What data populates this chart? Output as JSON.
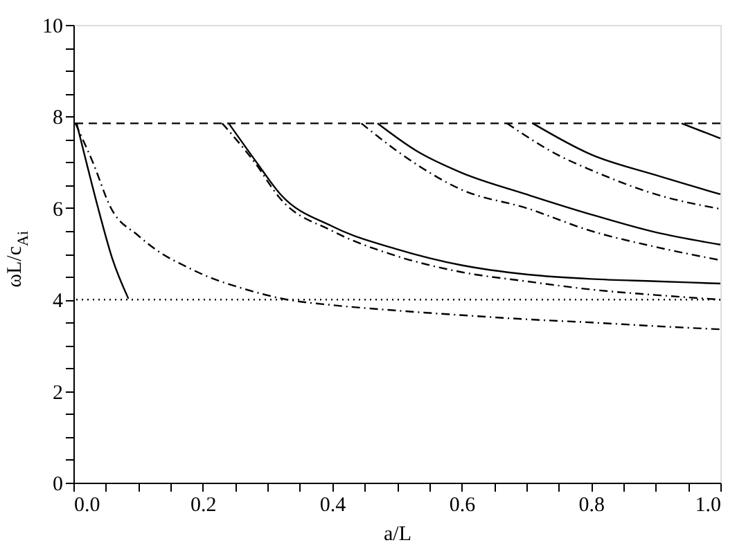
{
  "chart_data": {
    "type": "line",
    "xlabel": "a/L",
    "ylabel": "ωL/c$_{Ai}$",
    "xlim": [
      0,
      1.0
    ],
    "ylim": [
      0,
      10
    ],
    "xticks": [
      {
        "value": 0,
        "label": "0.0"
      },
      {
        "value": 0.05,
        "label": null
      },
      {
        "value": 0.1,
        "label": null
      },
      {
        "value": 0.15,
        "label": null
      },
      {
        "value": 0.2,
        "label": "0.2"
      },
      {
        "value": 0.25,
        "label": null
      },
      {
        "value": 0.3,
        "label": null
      },
      {
        "value": 0.35,
        "label": null
      },
      {
        "value": 0.4,
        "label": "0.4"
      },
      {
        "value": 0.45,
        "label": null
      },
      {
        "value": 0.5,
        "label": null
      },
      {
        "value": 0.55,
        "label": null
      },
      {
        "value": 0.6,
        "label": "0.6"
      },
      {
        "value": 0.65,
        "label": null
      },
      {
        "value": 0.7,
        "label": null
      },
      {
        "value": 0.75,
        "label": null
      },
      {
        "value": 0.8,
        "label": "0.8"
      },
      {
        "value": 0.85,
        "label": null
      },
      {
        "value": 0.9,
        "label": null
      },
      {
        "value": 0.95,
        "label": null
      },
      {
        "value": 1.0,
        "label": "1.0"
      }
    ],
    "yticks": [
      0,
      {
        "value": 0.5,
        "label": null
      },
      {
        "value": 1,
        "label": null
      },
      {
        "value": 1.5,
        "label": null
      },
      2,
      {
        "value": 2.5,
        "label": null
      },
      {
        "value": 3,
        "label": null
      },
      {
        "value": 3.5,
        "label": null
      },
      4,
      {
        "value": 4.5,
        "label": null
      },
      {
        "value": 5,
        "label": null
      },
      {
        "value": 5.5,
        "label": null
      },
      6,
      {
        "value": 6.5,
        "label": null
      },
      {
        "value": 7,
        "label": null
      },
      {
        "value": 7.5,
        "label": null
      },
      8,
      {
        "value": 8.5,
        "label": null
      },
      {
        "value": 9,
        "label": null
      },
      {
        "value": 9.5,
        "label": null
      },
      10
    ],
    "grid": false,
    "marker": "none",
    "ref_lines": [
      {
        "axis": "y",
        "value": 7.85,
        "color": "#000000",
        "line_style": "dashed"
      },
      {
        "axis": "y",
        "value": 4.0,
        "color": "#000000",
        "line_style": "dotted"
      }
    ],
    "series": [
      {
        "color": "#000000",
        "line_style": "solid",
        "x": [
          0.005,
          0.02,
          0.04,
          0.06,
          0.085
        ],
        "values": [
          7.85,
          7.0,
          5.9,
          4.9,
          4.02
        ]
      },
      {
        "color": "#000000",
        "line_style": "dashdot",
        "x": [
          0.003,
          0.03,
          0.058,
          0.1,
          0.137,
          0.17,
          0.208,
          0.26,
          0.33,
          0.4,
          0.5,
          0.6,
          0.7,
          0.8,
          0.9,
          1.0
        ],
        "values": [
          7.85,
          7.0,
          6.0,
          5.4,
          5.0,
          4.75,
          4.5,
          4.25,
          4.0,
          3.88,
          3.76,
          3.66,
          3.57,
          3.5,
          3.42,
          3.35
        ]
      },
      {
        "color": "#000000",
        "line_style": "solid",
        "x": [
          0.24,
          0.283,
          0.32,
          0.4,
          0.5,
          0.6,
          0.7,
          0.8,
          0.9,
          1.0
        ],
        "values": [
          7.85,
          7.0,
          6.3,
          5.6,
          5.1,
          4.75,
          4.55,
          4.45,
          4.4,
          4.35
        ]
      },
      {
        "color": "#000000",
        "line_style": "dashdot",
        "x": [
          0.23,
          0.28,
          0.32,
          0.4,
          0.5,
          0.6,
          0.7,
          0.8,
          0.9,
          1.0
        ],
        "values": [
          7.85,
          7.0,
          6.2,
          5.5,
          4.95,
          4.6,
          4.4,
          4.22,
          4.1,
          4.0
        ]
      },
      {
        "color": "#000000",
        "line_style": "solid",
        "x": [
          0.47,
          0.53,
          0.6,
          0.7,
          0.8,
          0.9,
          1.0
        ],
        "values": [
          7.85,
          7.25,
          6.77,
          6.3,
          5.86,
          5.47,
          5.2
        ]
      },
      {
        "color": "#000000",
        "line_style": "dashdot",
        "x": [
          0.445,
          0.52,
          0.6,
          0.7,
          0.8,
          0.9,
          1.0
        ],
        "values": [
          7.85,
          7.05,
          6.4,
          6.0,
          5.5,
          5.15,
          4.86
        ]
      },
      {
        "color": "#000000",
        "line_style": "solid",
        "x": [
          0.71,
          0.8,
          0.9,
          1.0
        ],
        "values": [
          7.85,
          7.17,
          6.72,
          6.3
        ]
      },
      {
        "color": "#000000",
        "line_style": "dashdot",
        "x": [
          0.67,
          0.75,
          0.8,
          0.9,
          1.0
        ],
        "values": [
          7.85,
          7.15,
          6.83,
          6.3,
          5.98
        ]
      },
      {
        "color": "#000000",
        "line_style": "solid",
        "x": [
          0.94,
          1.0
        ],
        "values": [
          7.85,
          7.52
        ]
      }
    ]
  }
}
